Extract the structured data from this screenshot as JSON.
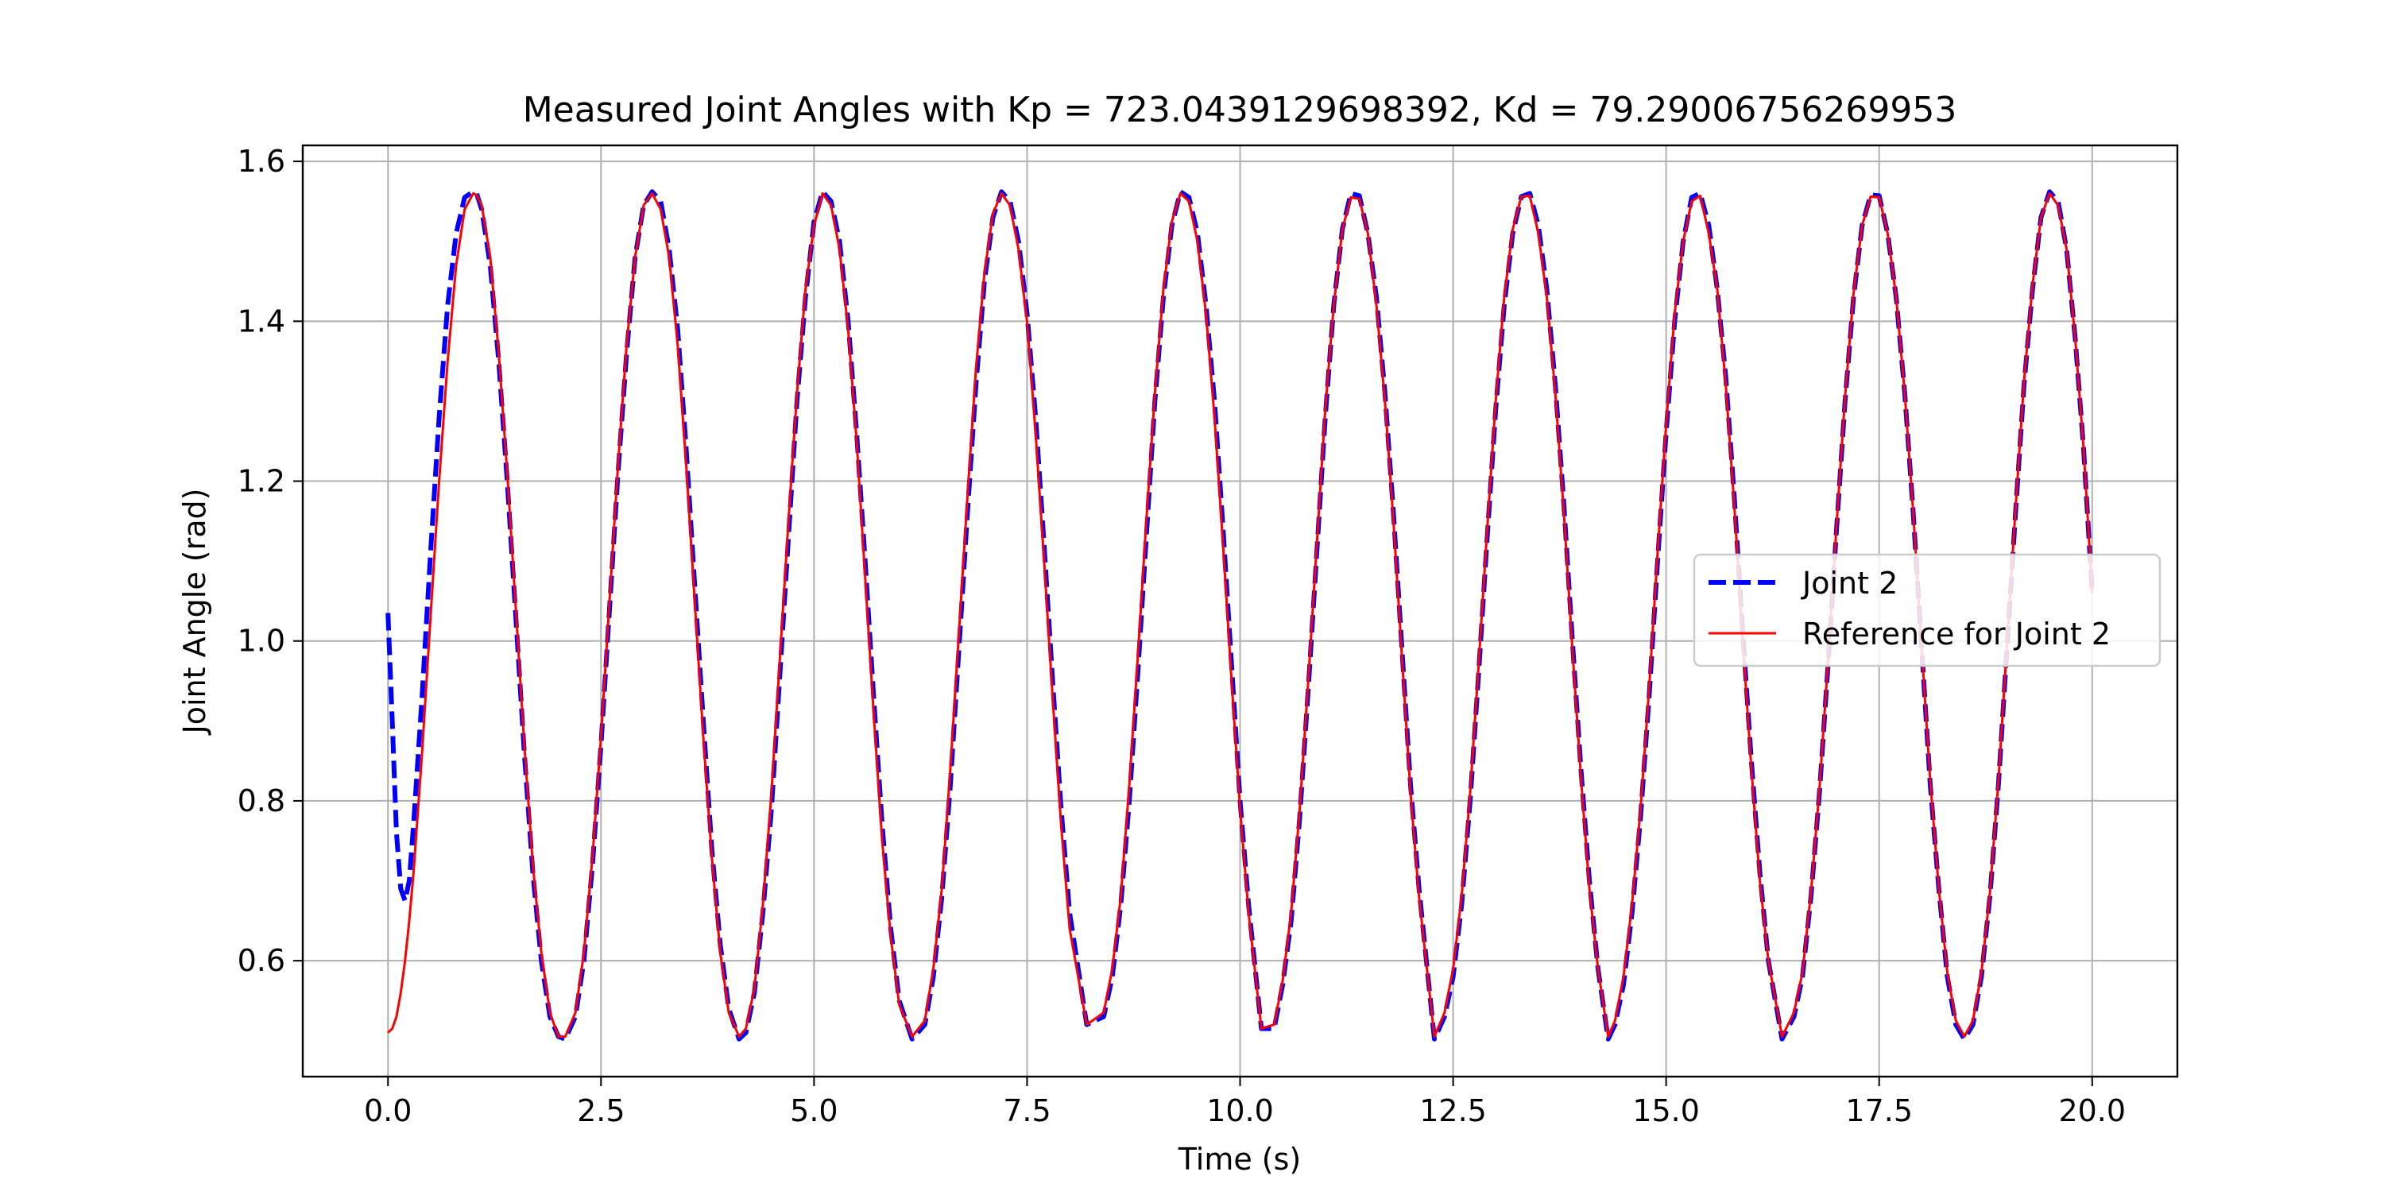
{
  "chart_data": {
    "type": "line",
    "title": "Measured Joint Angles with Kp = 723.0439129698392, Kd = 79.29006756269953",
    "xlabel": "Time (s)",
    "ylabel": "Joint Angle (rad)",
    "xlim": [
      -1.0,
      21.0
    ],
    "ylim": [
      0.455,
      1.62
    ],
    "xticks": [
      0.0,
      2.5,
      5.0,
      7.5,
      10.0,
      12.5,
      15.0,
      17.5,
      20.0
    ],
    "xtick_labels": [
      "0.0",
      "2.5",
      "5.0",
      "7.5",
      "10.0",
      "12.5",
      "15.0",
      "17.5",
      "20.0"
    ],
    "yticks": [
      0.6,
      0.8,
      1.0,
      1.2,
      1.4,
      1.6
    ],
    "ytick_labels": [
      "0.6",
      "0.8",
      "1.0",
      "1.2",
      "1.4",
      "1.6"
    ],
    "grid": true,
    "legend_position": "center-right",
    "series": [
      {
        "name": "Joint 2",
        "color": "#0000ff",
        "style": "dashed",
        "x": [
          0.0,
          0.05,
          0.1,
          0.15,
          0.2,
          0.25,
          0.3,
          0.4,
          0.5,
          0.6,
          0.7,
          0.8,
          0.9,
          1.0,
          1.04,
          1.1,
          1.2,
          1.3,
          1.4,
          1.5,
          1.6,
          1.7,
          1.8,
          1.9,
          2.0,
          2.08,
          2.2,
          2.3,
          2.4,
          2.5,
          2.6,
          2.7,
          2.8,
          2.9,
          3.0,
          3.1,
          3.2,
          3.3,
          3.4,
          3.5,
          3.6,
          3.7,
          3.8,
          3.9,
          4.0,
          4.12,
          4.2,
          4.3,
          4.4,
          4.5,
          4.6,
          4.7,
          4.8,
          4.9,
          5.0,
          5.1,
          5.2,
          5.3,
          5.4,
          5.5,
          5.6,
          5.7,
          5.8,
          5.9,
          6.0,
          6.15,
          6.3,
          6.4,
          6.5,
          6.6,
          6.7,
          6.8,
          6.9,
          7.0,
          7.1,
          7.2,
          7.3,
          7.4,
          7.5,
          7.6,
          7.7,
          7.8,
          7.9,
          8.0,
          8.2,
          8.4,
          8.5,
          8.6,
          8.7,
          8.8,
          8.9,
          9.0,
          9.1,
          9.2,
          9.3,
          9.4,
          9.5,
          9.6,
          9.7,
          9.8,
          9.9,
          10.0,
          10.1,
          10.25,
          10.4,
          10.5,
          10.6,
          10.7,
          10.8,
          10.9,
          11.0,
          11.1,
          11.2,
          11.3,
          11.4,
          11.5,
          11.6,
          11.7,
          11.8,
          11.9,
          12.0,
          12.1,
          12.28,
          12.4,
          12.5,
          12.6,
          12.7,
          12.8,
          12.9,
          13.0,
          13.1,
          13.2,
          13.3,
          13.4,
          13.5,
          13.6,
          13.7,
          13.8,
          13.9,
          14.0,
          14.1,
          14.2,
          14.32,
          14.4,
          14.5,
          14.6,
          14.7,
          14.8,
          14.9,
          15.0,
          15.1,
          15.2,
          15.3,
          15.4,
          15.5,
          15.6,
          15.7,
          15.8,
          15.9,
          16.0,
          16.1,
          16.2,
          16.36,
          16.5,
          16.6,
          16.7,
          16.8,
          16.9,
          17.0,
          17.1,
          17.2,
          17.3,
          17.4,
          17.5,
          17.6,
          17.7,
          17.8,
          17.9,
          18.0,
          18.1,
          18.2,
          18.3,
          18.4,
          18.5,
          18.6,
          18.7,
          18.8,
          18.9,
          19.0,
          19.1,
          19.2,
          19.3,
          19.4,
          19.5,
          19.6,
          19.7,
          19.8,
          19.9,
          20.0
        ],
        "y": [
          1.035,
          0.9,
          0.76,
          0.69,
          0.675,
          0.7,
          0.77,
          0.93,
          1.11,
          1.28,
          1.42,
          1.51,
          1.555,
          1.562,
          1.56,
          1.54,
          1.47,
          1.35,
          1.2,
          1.03,
          0.86,
          0.71,
          0.6,
          0.53,
          0.505,
          0.502,
          0.53,
          0.6,
          0.72,
          0.87,
          1.04,
          1.21,
          1.36,
          1.48,
          1.545,
          1.562,
          1.55,
          1.49,
          1.39,
          1.24,
          1.07,
          0.9,
          0.74,
          0.62,
          0.54,
          0.502,
          0.51,
          0.56,
          0.66,
          0.79,
          0.96,
          1.13,
          1.3,
          1.43,
          1.525,
          1.562,
          1.55,
          1.5,
          1.4,
          1.26,
          1.1,
          0.93,
          0.77,
          0.64,
          0.55,
          0.502,
          0.52,
          0.58,
          0.68,
          0.82,
          0.99,
          1.16,
          1.32,
          1.45,
          1.53,
          1.562,
          1.55,
          1.5,
          1.41,
          1.28,
          1.12,
          0.95,
          0.79,
          0.66,
          0.52,
          0.53,
          0.58,
          0.67,
          0.8,
          0.96,
          1.13,
          1.3,
          1.43,
          1.52,
          1.562,
          1.555,
          1.51,
          1.42,
          1.3,
          1.14,
          0.97,
          0.8,
          0.67,
          0.515,
          0.515,
          0.57,
          0.65,
          0.78,
          0.94,
          1.11,
          1.28,
          1.42,
          1.515,
          1.56,
          1.557,
          1.51,
          1.43,
          1.31,
          1.16,
          0.99,
          0.82,
          0.69,
          0.502,
          0.53,
          0.58,
          0.67,
          0.8,
          0.96,
          1.13,
          1.29,
          1.42,
          1.51,
          1.556,
          1.56,
          1.52,
          1.44,
          1.32,
          1.17,
          1.0,
          0.84,
          0.7,
          0.59,
          0.502,
          0.52,
          0.57,
          0.66,
          0.78,
          0.93,
          1.1,
          1.26,
          1.4,
          1.5,
          1.555,
          1.56,
          1.52,
          1.44,
          1.33,
          1.18,
          1.01,
          0.85,
          0.71,
          0.6,
          0.502,
          0.53,
          0.58,
          0.68,
          0.81,
          0.97,
          1.14,
          1.3,
          1.43,
          1.52,
          1.558,
          1.557,
          1.51,
          1.43,
          1.31,
          1.16,
          0.99,
          0.82,
          0.69,
          0.58,
          0.52,
          0.502,
          0.52,
          0.58,
          0.68,
          0.82,
          0.99,
          1.16,
          1.32,
          1.44,
          1.53,
          1.562,
          1.55,
          1.49,
          1.38,
          1.24,
          1.06
        ]
      },
      {
        "name": "Reference for Joint 2",
        "color": "#ff0000",
        "style": "solid",
        "x": [
          0.0,
          0.05,
          0.1,
          0.15,
          0.2,
          0.25,
          0.3,
          0.4,
          0.5,
          0.6,
          0.7,
          0.8,
          0.9,
          1.0,
          1.04,
          1.1,
          1.2,
          1.3,
          1.4,
          1.5,
          1.6,
          1.7,
          1.8,
          1.9,
          2.0,
          2.08,
          2.2,
          2.3,
          2.4,
          2.5,
          2.6,
          2.7,
          2.8,
          2.9,
          3.0,
          3.1,
          3.2,
          3.3,
          3.4,
          3.5,
          3.6,
          3.7,
          3.8,
          3.9,
          4.0,
          4.12,
          4.2,
          4.3,
          4.4,
          4.5,
          4.6,
          4.7,
          4.8,
          4.9,
          5.0,
          5.1,
          5.2,
          5.3,
          5.4,
          5.5,
          5.6,
          5.7,
          5.8,
          5.9,
          6.0,
          6.15,
          6.3,
          6.4,
          6.5,
          6.6,
          6.7,
          6.8,
          6.9,
          7.0,
          7.1,
          7.2,
          7.3,
          7.4,
          7.5,
          7.6,
          7.7,
          7.8,
          7.9,
          8.0,
          8.2,
          8.4,
          8.5,
          8.6,
          8.7,
          8.8,
          8.9,
          9.0,
          9.1,
          9.2,
          9.3,
          9.4,
          9.5,
          9.6,
          9.7,
          9.8,
          9.9,
          10.0,
          10.1,
          10.25,
          10.4,
          10.5,
          10.6,
          10.7,
          10.8,
          10.9,
          11.0,
          11.1,
          11.2,
          11.3,
          11.4,
          11.5,
          11.6,
          11.7,
          11.8,
          11.9,
          12.0,
          12.1,
          12.28,
          12.4,
          12.5,
          12.6,
          12.7,
          12.8,
          12.9,
          13.0,
          13.1,
          13.2,
          13.3,
          13.4,
          13.5,
          13.6,
          13.7,
          13.8,
          13.9,
          14.0,
          14.1,
          14.2,
          14.32,
          14.4,
          14.5,
          14.6,
          14.7,
          14.8,
          14.9,
          15.0,
          15.1,
          15.2,
          15.3,
          15.4,
          15.5,
          15.6,
          15.7,
          15.8,
          15.9,
          16.0,
          16.1,
          16.2,
          16.36,
          16.5,
          16.6,
          16.7,
          16.8,
          16.9,
          17.0,
          17.1,
          17.2,
          17.3,
          17.4,
          17.5,
          17.6,
          17.7,
          17.8,
          17.9,
          18.0,
          18.1,
          18.2,
          18.3,
          18.4,
          18.5,
          18.6,
          18.7,
          18.8,
          18.9,
          19.0,
          19.1,
          19.2,
          19.3,
          19.4,
          19.5,
          19.6,
          19.7,
          19.8,
          19.9,
          20.0
        ],
        "y": [
          0.51,
          0.515,
          0.53,
          0.56,
          0.6,
          0.65,
          0.71,
          0.86,
          1.03,
          1.2,
          1.35,
          1.47,
          1.54,
          1.56,
          1.558,
          1.545,
          1.48,
          1.36,
          1.21,
          1.04,
          0.87,
          0.72,
          0.61,
          0.535,
          0.505,
          0.505,
          0.535,
          0.61,
          0.73,
          0.88,
          1.05,
          1.22,
          1.37,
          1.48,
          1.545,
          1.56,
          1.54,
          1.48,
          1.37,
          1.22,
          1.05,
          0.88,
          0.73,
          0.61,
          0.535,
          0.505,
          0.515,
          0.565,
          0.67,
          0.81,
          0.98,
          1.15,
          1.31,
          1.44,
          1.52,
          1.56,
          1.545,
          1.49,
          1.39,
          1.25,
          1.08,
          0.91,
          0.75,
          0.63,
          0.545,
          0.505,
          0.525,
          0.59,
          0.69,
          0.84,
          1.01,
          1.18,
          1.34,
          1.46,
          1.535,
          1.56,
          1.545,
          1.49,
          1.4,
          1.26,
          1.1,
          0.93,
          0.77,
          0.64,
          0.52,
          0.535,
          0.59,
          0.68,
          0.82,
          0.98,
          1.15,
          1.31,
          1.44,
          1.525,
          1.56,
          1.55,
          1.5,
          1.41,
          1.28,
          1.12,
          0.95,
          0.79,
          0.66,
          0.515,
          0.52,
          0.575,
          0.66,
          0.79,
          0.95,
          1.12,
          1.29,
          1.42,
          1.515,
          1.555,
          1.553,
          1.51,
          1.42,
          1.3,
          1.15,
          0.98,
          0.81,
          0.68,
          0.505,
          0.535,
          0.59,
          0.68,
          0.81,
          0.97,
          1.14,
          1.3,
          1.43,
          1.515,
          1.556,
          1.557,
          1.51,
          1.43,
          1.31,
          1.16,
          0.99,
          0.83,
          0.69,
          0.59,
          0.505,
          0.525,
          0.58,
          0.67,
          0.79,
          0.94,
          1.11,
          1.27,
          1.41,
          1.5,
          1.55,
          1.557,
          1.51,
          1.44,
          1.32,
          1.17,
          1.0,
          0.84,
          0.7,
          0.6,
          0.505,
          0.535,
          0.585,
          0.685,
          0.815,
          0.975,
          1.145,
          1.305,
          1.435,
          1.52,
          1.556,
          1.555,
          1.51,
          1.43,
          1.31,
          1.16,
          0.99,
          0.825,
          0.69,
          0.585,
          0.525,
          0.505,
          0.525,
          0.585,
          0.685,
          0.825,
          0.995,
          1.165,
          1.325,
          1.445,
          1.53,
          1.56,
          1.545,
          1.49,
          1.38,
          1.24,
          1.06
        ]
      }
    ]
  }
}
